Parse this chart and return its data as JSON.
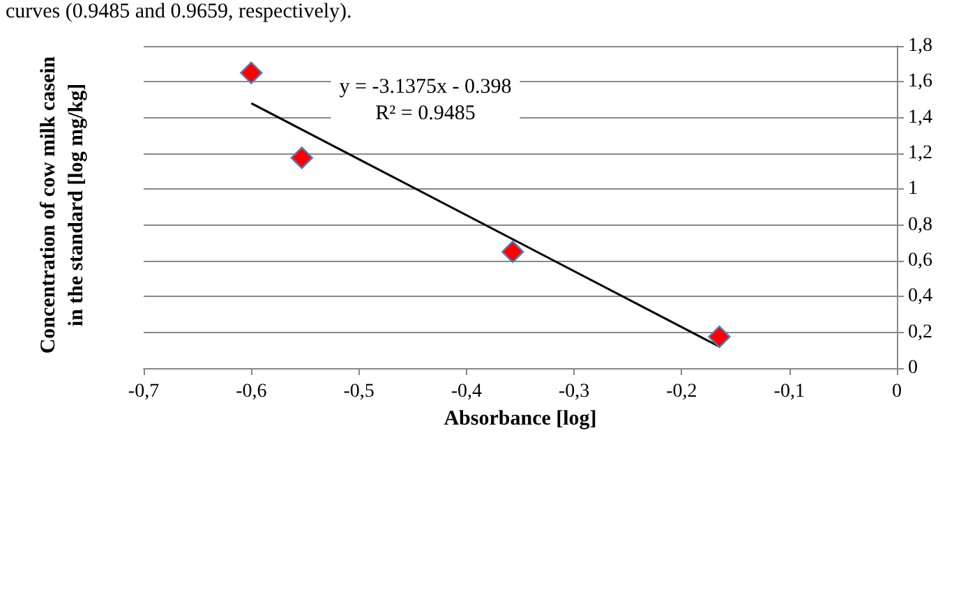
{
  "chart_data": {
    "type": "scatter",
    "xlabel": "Absorbance [log]",
    "ylabel": "Concentration of cow milk casein\nin the standard [log mg/kg]",
    "annotations": [
      "curves (0.9485 and 0.9659, respectively).",
      "y = -3.1375x - 0.398\nR² = 0.9485"
    ],
    "series": [
      {
        "color": "#ff0000",
        "marker": "diamond",
        "x": [
          -0.6,
          -0.553,
          -0.357,
          -0.165
        ],
        "values": [
          1.65,
          1.175,
          0.65,
          0.175
        ]
      },
      {
        "type": "line",
        "color": "#000000",
        "marker": "none",
        "x": [
          -0.6,
          -0.165
        ],
        "values": [
          1.48,
          0.12
        ]
      }
    ],
    "xlim": [
      -0.7,
      0
    ],
    "ylim": [
      0,
      1.8
    ],
    "xticks": [
      {
        "value": -0.7,
        "label": "-0,7"
      },
      {
        "value": -0.6,
        "label": "-0,6"
      },
      {
        "value": -0.5,
        "label": "-0,5"
      },
      {
        "value": -0.4,
        "label": "-0,4"
      },
      {
        "value": -0.3,
        "label": "-0,3"
      },
      {
        "value": -0.2,
        "label": "-0,2"
      },
      {
        "value": -0.1,
        "label": "-0,1"
      },
      {
        "value": 0,
        "label": "0"
      }
    ],
    "yticks": [
      {
        "value": 0,
        "label": "0"
      },
      {
        "value": 0.2,
        "label": "0,2"
      },
      {
        "value": 0.4,
        "label": "0,4"
      },
      {
        "value": 0.6,
        "label": "0,6"
      },
      {
        "value": 0.8,
        "label": "0,8"
      },
      {
        "value": 1,
        "label": "1"
      },
      {
        "value": 1.2,
        "label": "1,2"
      },
      {
        "value": 1.4,
        "label": "1,4"
      },
      {
        "value": 1.6,
        "label": "1,6"
      },
      {
        "value": 1.8,
        "label": "1,8"
      }
    ],
    "grid": "y"
  }
}
